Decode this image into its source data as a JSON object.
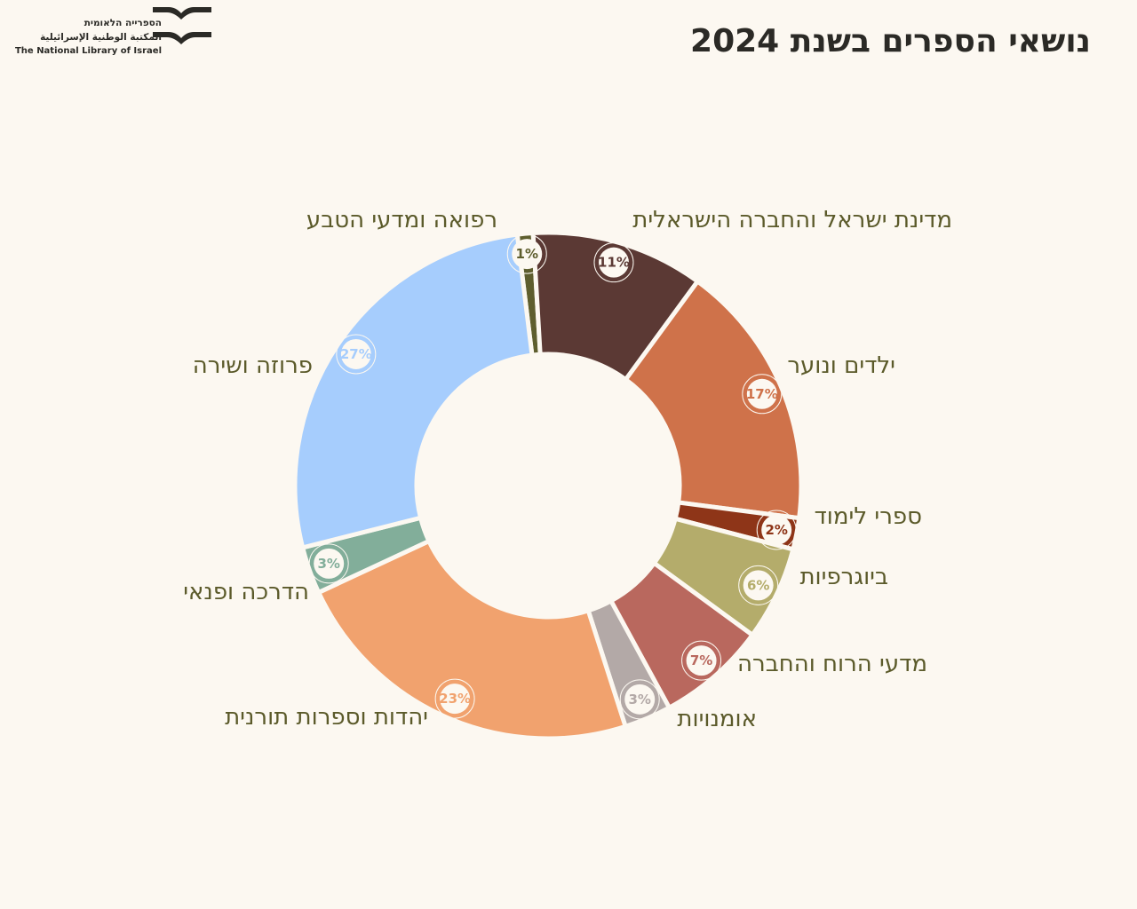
{
  "header": {
    "title": "נושאי הספרים בשנת 2024",
    "logo_line1": "הספרייה הלאומית",
    "logo_line2": "المكتبة الوطنية الإسرائيلية",
    "logo_line3": "The National Library of Israel"
  },
  "chart_data": {
    "type": "pie",
    "donut": true,
    "title": "נושאי הספרים בשנת 2024",
    "slices": [
      {
        "label": "רפואה ומדעי הטבע",
        "value": 1,
        "display": "1%",
        "color": "#5e5e2e"
      },
      {
        "label": "מדינת ישראל והחברה הישראלית",
        "value": 11,
        "display": "11%",
        "color": "#5b3934"
      },
      {
        "label": "ילדים ונוער",
        "value": 17,
        "display": "17%",
        "color": "#cf724a"
      },
      {
        "label": "ספרי לימוד",
        "value": 2,
        "display": "2%",
        "color": "#8e3518"
      },
      {
        "label": "ביוגרפיות",
        "value": 6,
        "display": "6%",
        "color": "#b4ac6b"
      },
      {
        "label": "מדעי הרוח והחברה",
        "value": 7,
        "display": "7%",
        "color": "#b9685e"
      },
      {
        "label": "אומנויות",
        "value": 3,
        "display": "3%",
        "color": "#b3a9a7"
      },
      {
        "label": "יהדות וספרות תורנית",
        "value": 23,
        "display": "23%",
        "color": "#f1a26e"
      },
      {
        "label": "הדרכה ופנאי",
        "value": 3,
        "display": "3%",
        "color": "#82ae9a"
      },
      {
        "label": "פרוזה ושירה",
        "value": 27,
        "display": "27%",
        "color": "#a6cdfd"
      }
    ]
  }
}
